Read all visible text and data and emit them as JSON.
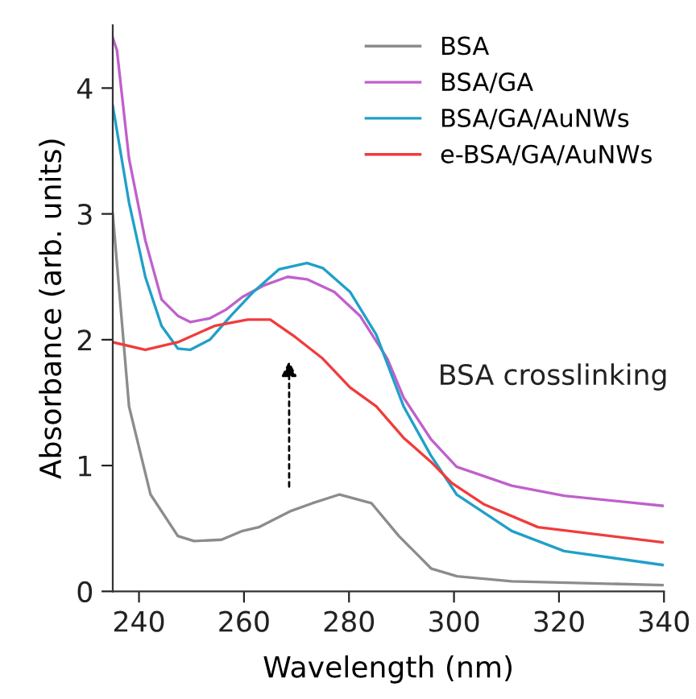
{
  "chart_data": {
    "type": "line",
    "xlabel": "Wavelength (nm)",
    "ylabel": "Absorbance (arb. units)",
    "xlim": [
      235,
      340
    ],
    "ylim": [
      0,
      4.5
    ],
    "xticks": [
      240,
      260,
      280,
      300,
      320,
      340
    ],
    "yticks": [
      0,
      1,
      2,
      3,
      4
    ],
    "grid": false,
    "legend": "top right",
    "marker": "none",
    "line_style": "solid",
    "annotations": [
      "BSA crosslinking"
    ],
    "series": [
      {
        "name": "BSA",
        "color": "#8c8c8c",
        "x": [
          235,
          238.1,
          242.2,
          247.4,
          250.5,
          255.7,
          259.7,
          262.8,
          269,
          273,
          278.2,
          284.3,
          289.5,
          295.7,
          300.6,
          311,
          339.7
        ],
        "values": [
          3.0,
          1.47,
          0.77,
          0.44,
          0.4,
          0.41,
          0.48,
          0.51,
          0.64,
          0.7,
          0.77,
          0.7,
          0.44,
          0.18,
          0.12,
          0.08,
          0.05
        ]
      },
      {
        "name": "BSA/GA",
        "color": "#c060cc",
        "x": [
          235,
          235.8,
          238.1,
          241.2,
          244.3,
          247.4,
          249.8,
          253.5,
          256.6,
          259.7,
          263.7,
          268.3,
          272,
          277.2,
          282.1,
          287.3,
          290.4,
          295.6,
          300.5,
          311,
          321,
          339.7
        ],
        "values": [
          4.4,
          4.3,
          3.44,
          2.79,
          2.32,
          2.19,
          2.14,
          2.17,
          2.24,
          2.34,
          2.43,
          2.5,
          2.48,
          2.38,
          2.19,
          1.85,
          1.54,
          1.21,
          0.99,
          0.84,
          0.76,
          0.68
        ]
      },
      {
        "name": "BSA/GA/AuNWs",
        "color": "#20a0c8",
        "x": [
          235,
          238.1,
          241.2,
          244.3,
          247.4,
          249.8,
          253.5,
          257.5,
          261.8,
          266.7,
          272,
          275,
          280.2,
          285.2,
          290.4,
          295.6,
          300.5,
          311,
          321,
          339.7
        ],
        "values": [
          3.86,
          3.09,
          2.5,
          2.11,
          1.93,
          1.92,
          2.0,
          2.19,
          2.38,
          2.56,
          2.61,
          2.57,
          2.38,
          2.04,
          1.47,
          1.08,
          0.77,
          0.48,
          0.32,
          0.21
        ]
      },
      {
        "name": "e-BSA/GA/AuNWs",
        "color": "#f03c3c",
        "x": [
          235,
          241.2,
          247.4,
          254.4,
          260.7,
          265,
          269.8,
          275,
          280.2,
          285.2,
          290.4,
          295.6,
          299.6,
          305.8,
          316,
          339.7
        ],
        "values": [
          1.98,
          1.92,
          1.98,
          2.11,
          2.16,
          2.16,
          2.02,
          1.85,
          1.62,
          1.47,
          1.22,
          1.03,
          0.86,
          0.69,
          0.51,
          0.39
        ]
      }
    ]
  }
}
